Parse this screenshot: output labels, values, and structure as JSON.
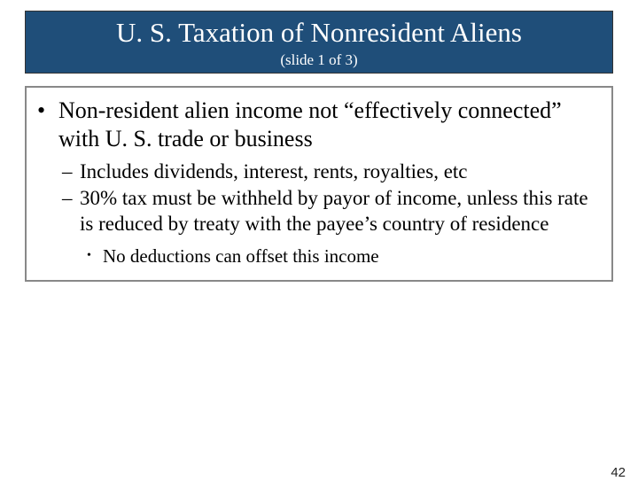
{
  "title": {
    "main": "U. S. Taxation of Nonresident Aliens",
    "sub": "(slide 1 of 3)"
  },
  "content": {
    "level1": "Non-resident alien income not “effectively connected” with U. S. trade or business",
    "level2a": "Includes dividends, interest, rents, royalties, etc",
    "level2b": "30% tax must be withheld by payor of income, unless this rate is reduced by treaty with the payee’s country of residence",
    "level3": "No deductions can offset this income"
  },
  "pageNumber": "42",
  "colors": {
    "titleBg": "#1f4e79",
    "titleText": "#ffffff",
    "bodyText": "#000000",
    "border": "#888888"
  }
}
